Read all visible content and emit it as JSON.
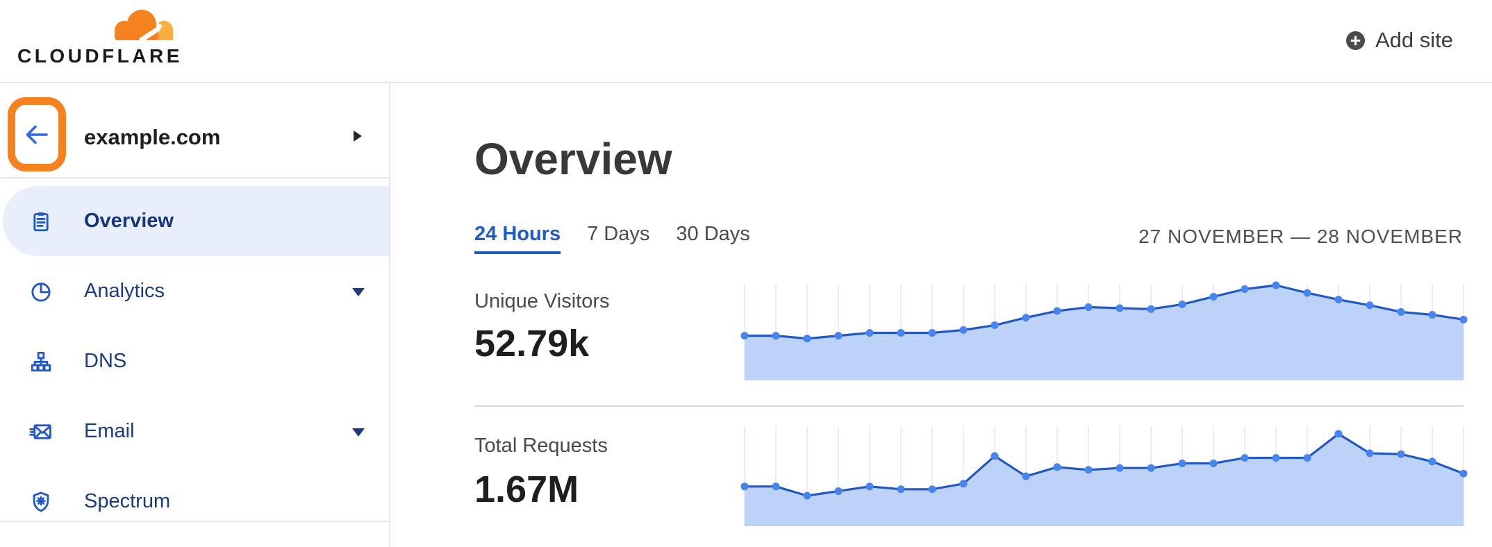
{
  "brand": {
    "name": "CLOUDFLARE",
    "orange": "#F6821F",
    "orange_light": "#FBAD41"
  },
  "colors": {
    "accent_blue": "#1E5BC6",
    "sidebar_text": "#1B3A80",
    "icon_blue": "#2158C9",
    "selected_bg": "#E9EFFA"
  },
  "header": {
    "add_site_label": "Add site"
  },
  "sidebar": {
    "site": {
      "domain": "example.com"
    },
    "items": [
      {
        "label": "Overview",
        "icon": "clipboard",
        "selected": true,
        "expandable": false
      },
      {
        "label": "Analytics",
        "icon": "pie-chart",
        "selected": false,
        "expandable": true
      },
      {
        "label": "DNS",
        "icon": "sitemap",
        "selected": false,
        "expandable": false
      },
      {
        "label": "Email",
        "icon": "envelope",
        "selected": false,
        "expandable": true
      },
      {
        "label": "Spectrum",
        "icon": "shield",
        "selected": false,
        "expandable": false
      }
    ]
  },
  "main": {
    "title": "Overview",
    "tabs": [
      {
        "label": "24 Hours",
        "active": true
      },
      {
        "label": "7 Days",
        "active": false
      },
      {
        "label": "30 Days",
        "active": false
      }
    ],
    "date_range": "27 NOVEMBER — 28 NOVEMBER",
    "stats": [
      {
        "label": "Unique Visitors",
        "value": "52.79k"
      },
      {
        "label": "Total Requests",
        "value": "1.67M"
      }
    ]
  },
  "chart_data": [
    {
      "type": "area",
      "title": "Unique Visitors",
      "total_label": "52.79k",
      "xlabel": "hour (24 Hours view, 27–28 November)",
      "ylabel": "unique visitors (relative, unlabeled axis)",
      "x": [
        0,
        1,
        2,
        3,
        4,
        5,
        6,
        7,
        8,
        9,
        10,
        11,
        12,
        13,
        14,
        15,
        16,
        17,
        18,
        19,
        20,
        21,
        22,
        23
      ],
      "values_relative": [
        0.47,
        0.47,
        0.44,
        0.47,
        0.5,
        0.5,
        0.5,
        0.53,
        0.58,
        0.66,
        0.73,
        0.77,
        0.76,
        0.75,
        0.8,
        0.88,
        0.96,
        1.0,
        0.92,
        0.85,
        0.79,
        0.72,
        0.69,
        0.64
      ],
      "ylim": [
        0,
        1
      ],
      "grid": "vertical-per-point",
      "legend": "none",
      "colors": {
        "line": "#2258C4",
        "dot": "#4685EF",
        "fill": "#BCD3F7",
        "grid": "#E9EDF7"
      }
    },
    {
      "type": "area",
      "title": "Total Requests",
      "total_label": "1.67M",
      "xlabel": "hour (24 Hours view, 27–28 November)",
      "ylabel": "requests (relative, unlabeled axis)",
      "x": [
        0,
        1,
        2,
        3,
        4,
        5,
        6,
        7,
        8,
        9,
        10,
        11,
        12,
        13,
        14,
        15,
        16,
        17,
        18,
        19,
        20,
        21,
        22,
        23
      ],
      "values_relative": [
        0.43,
        0.43,
        0.33,
        0.38,
        0.43,
        0.4,
        0.4,
        0.46,
        0.76,
        0.54,
        0.64,
        0.61,
        0.63,
        0.63,
        0.68,
        0.68,
        0.74,
        0.74,
        0.74,
        1.0,
        0.79,
        0.78,
        0.7,
        0.57
      ],
      "ylim": [
        0,
        1
      ],
      "grid": "vertical-per-point",
      "legend": "none",
      "colors": {
        "line": "#2258C4",
        "dot": "#4685EF",
        "fill": "#BCD3F7",
        "grid": "#E9EDF7"
      }
    }
  ]
}
